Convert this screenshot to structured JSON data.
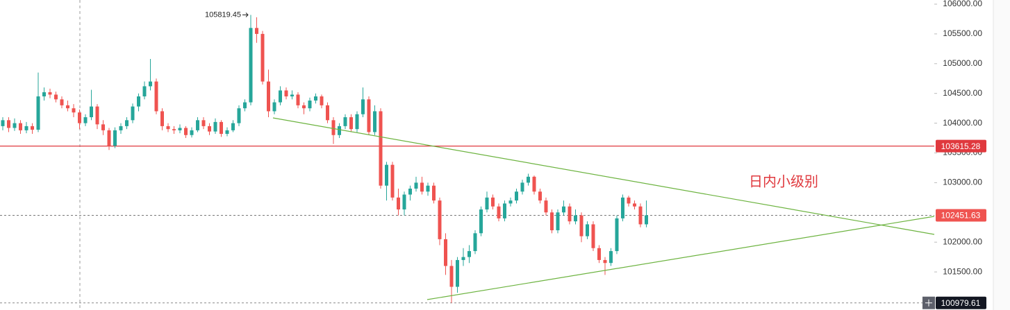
{
  "chart_data": {
    "type": "candlestick",
    "up_color": "#26a69a",
    "down_color": "#ef5350",
    "ylim": [
      100860,
      106070
    ],
    "yticks": [
      {
        "value": 101500,
        "label": "101500.00"
      },
      {
        "value": 102000,
        "label": "102000.00"
      },
      {
        "value": 103000,
        "label": "103000.00"
      },
      {
        "value": 103500,
        "label": "103500.00"
      },
      {
        "value": 104000,
        "label": "104000.00"
      },
      {
        "value": 104500,
        "label": "104500.00"
      },
      {
        "value": 105000,
        "label": "105000.00"
      },
      {
        "value": 105500,
        "label": "105500.00"
      },
      {
        "value": 106000,
        "label": "106000.00"
      }
    ],
    "horizontal_line": 103615.28,
    "horizontal_line_color": "#e0393e",
    "last_price": 102451.63,
    "last_price_color": "#ef5350",
    "high_mark": 105819.45,
    "low_mark": 100979.61,
    "annotation": "日内小级别",
    "ohlc": [
      [
        103950,
        104100,
        103880,
        104050
      ],
      [
        104050,
        104100,
        103850,
        103920
      ],
      [
        103920,
        104080,
        103870,
        104000
      ],
      [
        104000,
        104050,
        103820,
        103880
      ],
      [
        103880,
        104020,
        103830,
        103950
      ],
      [
        103950,
        104000,
        103820,
        103890
      ],
      [
        103890,
        104850,
        103850,
        104450
      ],
      [
        104450,
        104600,
        104380,
        104520
      ],
      [
        104520,
        104580,
        104420,
        104480
      ],
      [
        104480,
        104530,
        104350,
        104400
      ],
      [
        104400,
        104450,
        104250,
        104300
      ],
      [
        104300,
        104380,
        104200,
        104250
      ],
      [
        104250,
        104320,
        104100,
        104180
      ],
      [
        104180,
        104230,
        103900,
        104000
      ],
      [
        104000,
        104150,
        103950,
        104100
      ],
      [
        104100,
        104560,
        104050,
        104280
      ],
      [
        104280,
        104320,
        103900,
        103980
      ],
      [
        103980,
        104050,
        103800,
        103880
      ],
      [
        103880,
        103920,
        103550,
        103620
      ],
      [
        103620,
        103930,
        103580,
        103880
      ],
      [
        103880,
        104000,
        103820,
        103950
      ],
      [
        103950,
        104100,
        103900,
        104050
      ],
      [
        104050,
        104330,
        104000,
        104280
      ],
      [
        104280,
        104500,
        104200,
        104450
      ],
      [
        104450,
        104700,
        104400,
        104620
      ],
      [
        104620,
        105080,
        104550,
        104700
      ],
      [
        104700,
        104750,
        104150,
        104200
      ],
      [
        104200,
        104250,
        103880,
        103950
      ],
      [
        103950,
        104000,
        103850,
        103900
      ],
      [
        103900,
        103950,
        103820,
        103880
      ],
      [
        103880,
        103980,
        103830,
        103920
      ],
      [
        103920,
        103950,
        103750,
        103800
      ],
      [
        103800,
        103930,
        103760,
        103880
      ],
      [
        103880,
        104100,
        103850,
        104050
      ],
      [
        104050,
        104100,
        103900,
        103950
      ],
      [
        103950,
        104000,
        103800,
        103860
      ],
      [
        103860,
        104080,
        103820,
        104020
      ],
      [
        104020,
        104050,
        103770,
        103820
      ],
      [
        103820,
        103930,
        103780,
        103880
      ],
      [
        103880,
        104050,
        103850,
        104000
      ],
      [
        104000,
        104300,
        103950,
        104250
      ],
      [
        104250,
        104400,
        104200,
        104350
      ],
      [
        104350,
        105819.45,
        104300,
        105600
      ],
      [
        105600,
        105780,
        105350,
        105500
      ],
      [
        105500,
        105550,
        104650,
        104700
      ],
      [
        104700,
        104900,
        104100,
        104200
      ],
      [
        104200,
        104400,
        104150,
        104350
      ],
      [
        104350,
        104620,
        104300,
        104550
      ],
      [
        104550,
        104600,
        104400,
        104450
      ],
      [
        104450,
        104550,
        104400,
        104480
      ],
      [
        104480,
        104520,
        104250,
        104300
      ],
      [
        104300,
        104350,
        104150,
        104250
      ],
      [
        104250,
        104430,
        104200,
        104380
      ],
      [
        104380,
        104500,
        104330,
        104450
      ],
      [
        104450,
        104480,
        104250,
        104300
      ],
      [
        104300,
        104350,
        104000,
        104050
      ],
      [
        104050,
        104100,
        103650,
        103800
      ],
      [
        103800,
        104000,
        103750,
        103950
      ],
      [
        103950,
        104150,
        103900,
        104100
      ],
      [
        104100,
        104150,
        103850,
        103900
      ],
      [
        103900,
        104200,
        103850,
        104150
      ],
      [
        104150,
        104600,
        104100,
        104400
      ],
      [
        104400,
        104450,
        103800,
        103850
      ],
      [
        103850,
        104300,
        103800,
        104200
      ],
      [
        104200,
        104250,
        102900,
        102950
      ],
      [
        102950,
        103350,
        102700,
        103300
      ],
      [
        103300,
        103350,
        102700,
        102750
      ],
      [
        102750,
        102900,
        102450,
        102550
      ],
      [
        102550,
        102850,
        102450,
        102800
      ],
      [
        102800,
        102950,
        102700,
        102900
      ],
      [
        102900,
        103100,
        102850,
        103000
      ],
      [
        103000,
        103100,
        102800,
        102850
      ],
      [
        102850,
        103000,
        102780,
        102950
      ],
      [
        102950,
        103000,
        102650,
        102700
      ],
      [
        102700,
        102750,
        101950,
        102050
      ],
      [
        102050,
        102150,
        101450,
        101600
      ],
      [
        101600,
        101700,
        100979.61,
        101250
      ],
      [
        101250,
        101750,
        101150,
        101700
      ],
      [
        101700,
        101900,
        101600,
        101750
      ],
      [
        101750,
        101950,
        101650,
        101850
      ],
      [
        101850,
        102200,
        101800,
        102150
      ],
      [
        102150,
        102600,
        102100,
        102550
      ],
      [
        102550,
        102850,
        102500,
        102750
      ],
      [
        102750,
        102800,
        102550,
        102600
      ],
      [
        102600,
        102650,
        102350,
        102400
      ],
      [
        102400,
        102700,
        102350,
        102650
      ],
      [
        102650,
        102750,
        102600,
        102700
      ],
      [
        102700,
        102900,
        102650,
        102850
      ],
      [
        102850,
        103050,
        102800,
        103000
      ],
      [
        103000,
        103150,
        102950,
        103100
      ],
      [
        103100,
        103120,
        102800,
        102850
      ],
      [
        102850,
        102900,
        102650,
        102700
      ],
      [
        102700,
        102750,
        102450,
        102500
      ],
      [
        102500,
        102550,
        102150,
        102200
      ],
      [
        102200,
        102550,
        102150,
        102500
      ],
      [
        102500,
        102700,
        102450,
        102600
      ],
      [
        102600,
        102650,
        102300,
        102350
      ],
      [
        102350,
        102550,
        102300,
        102450
      ],
      [
        102450,
        102500,
        102000,
        102100
      ],
      [
        102100,
        102350,
        102050,
        102300
      ],
      [
        102300,
        102350,
        101850,
        101900
      ],
      [
        101900,
        101950,
        101650,
        101700
      ],
      [
        101700,
        101750,
        101450,
        101650
      ],
      [
        101650,
        101900,
        101600,
        101850
      ],
      [
        101850,
        102450,
        101800,
        102400
      ],
      [
        102400,
        102800,
        102350,
        102750
      ],
      [
        102750,
        102780,
        102600,
        102650
      ],
      [
        102650,
        102700,
        102550,
        102600
      ],
      [
        102600,
        102650,
        102250,
        102300
      ],
      [
        102300,
        102700,
        102250,
        102451.63
      ]
    ]
  }
}
